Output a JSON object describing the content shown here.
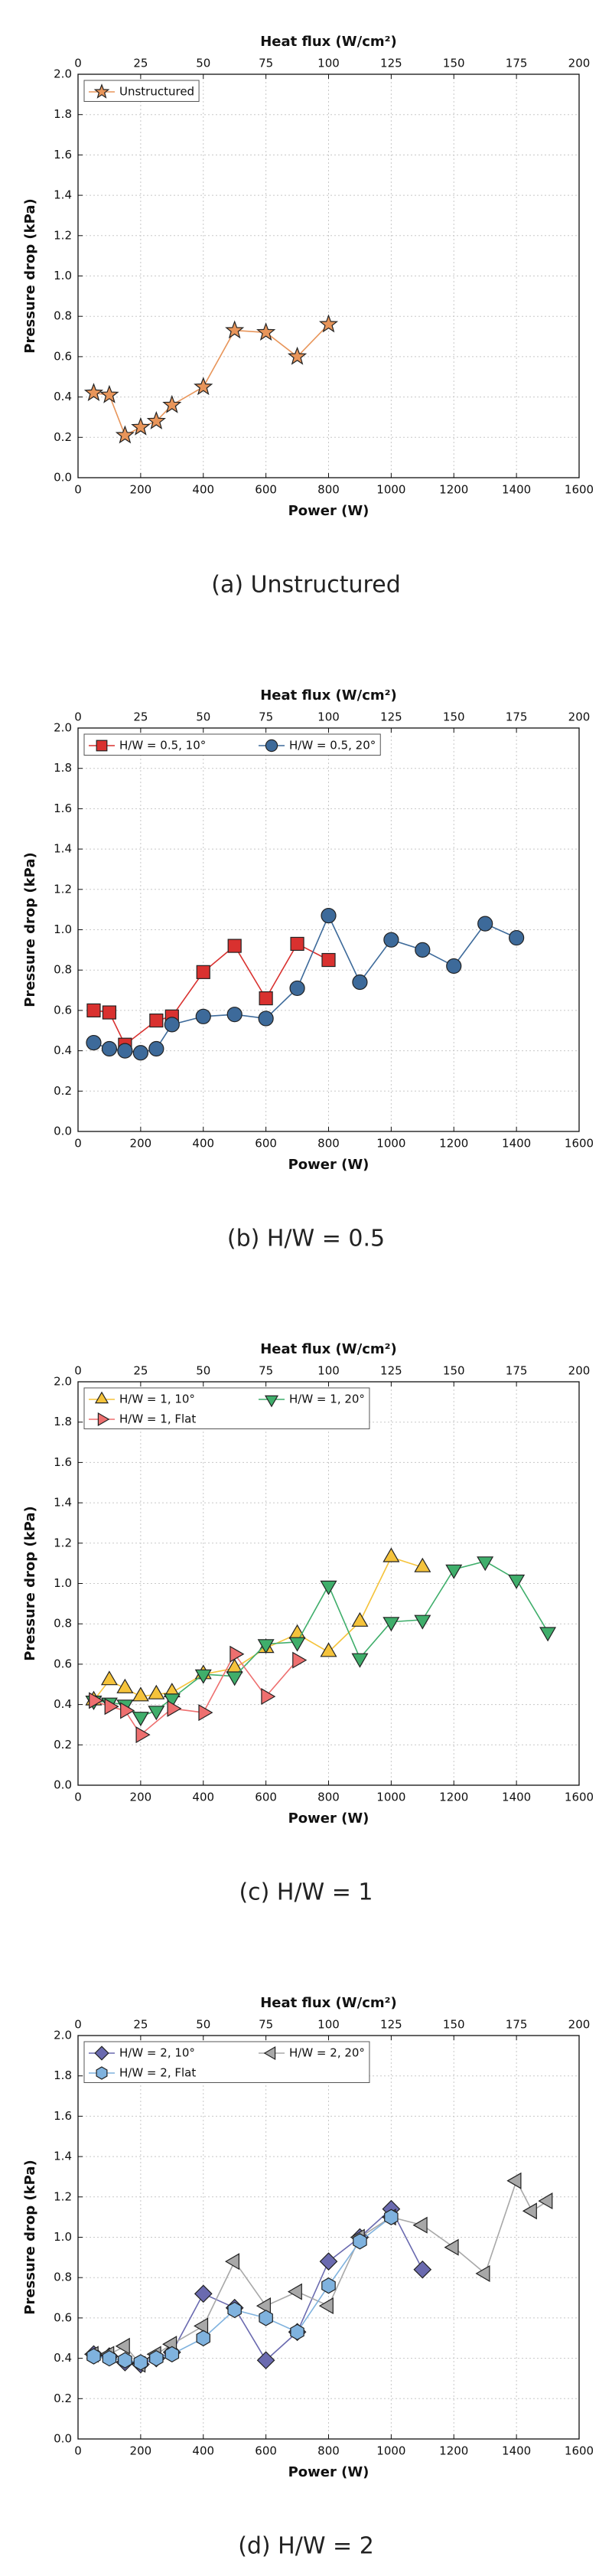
{
  "chart_data": [
    {
      "type": "line",
      "caption": "(a) Unstructured",
      "xlabel": "Power (W)",
      "ylabel": "Pressure drop (kPa)",
      "x2label": "Heat flux (W/cm²)",
      "xlim": [
        0,
        1600
      ],
      "xticks": [
        0,
        200,
        400,
        600,
        800,
        1000,
        1200,
        1400,
        1600
      ],
      "x2lim": [
        0,
        200
      ],
      "x2ticks": [
        0,
        25,
        50,
        75,
        100,
        125,
        150,
        175,
        200
      ],
      "ylim": [
        0,
        2
      ],
      "yticks": [
        {
          "value": 0,
          "label": "0.0"
        },
        0.2,
        0.4,
        0.6,
        0.8,
        {
          "value": 1,
          "label": "1.0"
        },
        1.2,
        1.4,
        1.6,
        1.8,
        {
          "value": 2,
          "label": "2.0"
        }
      ],
      "grid": true,
      "legend": "upper left",
      "series": [
        {
          "name": "Unstructured",
          "color": "#e8955a",
          "marker": "star",
          "x": [
            50,
            100,
            150,
            200,
            250,
            300,
            400,
            500,
            600,
            700,
            800
          ],
          "values": [
            0.42,
            0.41,
            0.21,
            0.25,
            0.28,
            0.36,
            0.45,
            0.73,
            0.72,
            0.6,
            0.76
          ]
        }
      ]
    },
    {
      "type": "line",
      "caption": "(b) H/W = 0.5",
      "xlabel": "Power (W)",
      "ylabel": "Pressure drop (kPa)",
      "x2label": "Heat flux (W/cm²)",
      "xlim": [
        0,
        1600
      ],
      "xticks": [
        0,
        200,
        400,
        600,
        800,
        1000,
        1200,
        1400,
        1600
      ],
      "x2lim": [
        0,
        200
      ],
      "x2ticks": [
        0,
        25,
        50,
        75,
        100,
        125,
        150,
        175,
        200
      ],
      "ylim": [
        0,
        2
      ],
      "yticks": [
        {
          "value": 0,
          "label": "0.0"
        },
        0.2,
        0.4,
        0.6,
        0.8,
        {
          "value": 1,
          "label": "1.0"
        },
        1.2,
        1.4,
        1.6,
        1.8,
        {
          "value": 2,
          "label": "2.0"
        }
      ],
      "grid": true,
      "legend": "upper left",
      "series": [
        {
          "name": "H/W = 0.5, 10°",
          "color": "#d9312f",
          "marker": "square",
          "x": [
            50,
            100,
            150,
            250,
            300,
            400,
            500,
            600,
            700,
            800
          ],
          "values": [
            0.6,
            0.59,
            0.43,
            0.55,
            0.57,
            0.79,
            0.92,
            0.66,
            0.93,
            0.85
          ]
        },
        {
          "name": "H/W = 0.5, 20°",
          "color": "#3d6a9a",
          "marker": "circle",
          "x": [
            50,
            100,
            150,
            200,
            250,
            300,
            400,
            500,
            600,
            700,
            800,
            900,
            1000,
            1100,
            1200,
            1300,
            1400
          ],
          "values": [
            0.44,
            0.41,
            0.4,
            0.39,
            0.41,
            0.53,
            0.57,
            0.58,
            0.56,
            0.71,
            1.07,
            0.74,
            0.95,
            0.9,
            0.82,
            1.03,
            0.96
          ]
        }
      ]
    },
    {
      "type": "line",
      "caption": "(c) H/W = 1",
      "xlabel": "Power (W)",
      "ylabel": "Pressure drop (kPa)",
      "x2label": "Heat flux (W/cm²)",
      "xlim": [
        0,
        1600
      ],
      "xticks": [
        0,
        200,
        400,
        600,
        800,
        1000,
        1200,
        1400,
        1600
      ],
      "x2lim": [
        0,
        200
      ],
      "x2ticks": [
        0,
        25,
        50,
        75,
        100,
        125,
        150,
        175,
        200
      ],
      "ylim": [
        0,
        2
      ],
      "yticks": [
        {
          "value": 0,
          "label": "0.0"
        },
        0.2,
        0.4,
        0.6,
        0.8,
        {
          "value": 1,
          "label": "1.0"
        },
        1.2,
        1.4,
        1.6,
        1.8,
        {
          "value": 2,
          "label": "2.0"
        }
      ],
      "grid": true,
      "legend": "upper left",
      "series": [
        {
          "name": "H/W = 1, 10°",
          "color": "#f5c33b",
          "marker": "triangle-up",
          "x": [
            50,
            100,
            150,
            200,
            250,
            300,
            400,
            500,
            600,
            700,
            800,
            900,
            1000,
            1100
          ],
          "values": [
            0.42,
            0.52,
            0.48,
            0.44,
            0.45,
            0.46,
            0.55,
            0.58,
            0.68,
            0.75,
            0.66,
            0.81,
            1.13,
            1.08
          ]
        },
        {
          "name": "H/W = 1, 20°",
          "color": "#3fae6b",
          "marker": "triangle-down",
          "x": [
            50,
            100,
            150,
            200,
            250,
            300,
            400,
            500,
            600,
            700,
            800,
            900,
            1000,
            1100,
            1200,
            1300,
            1400,
            1500
          ],
          "values": [
            0.42,
            0.41,
            0.4,
            0.34,
            0.37,
            0.43,
            0.55,
            0.54,
            0.7,
            0.71,
            0.99,
            0.63,
            0.81,
            0.82,
            1.07,
            1.11,
            1.02,
            0.76
          ]
        },
        {
          "name": "H/W = 1, Flat",
          "color": "#ee6f6f",
          "marker": "triangle-right",
          "x": [
            50,
            100,
            150,
            200,
            300,
            400,
            500,
            600,
            700
          ],
          "values": [
            0.42,
            0.39,
            0.37,
            0.25,
            0.38,
            0.36,
            0.65,
            0.44,
            0.62
          ]
        }
      ]
    },
    {
      "type": "line",
      "caption": "(d) H/W = 2",
      "xlabel": "Power (W)",
      "ylabel": "Pressure drop (kPa)",
      "x2label": "Heat flux (W/cm²)",
      "xlim": [
        0,
        1600
      ],
      "xticks": [
        0,
        200,
        400,
        600,
        800,
        1000,
        1200,
        1400,
        1600
      ],
      "x2lim": [
        0,
        200
      ],
      "x2ticks": [
        0,
        25,
        50,
        75,
        100,
        125,
        150,
        175,
        200
      ],
      "ylim": [
        0,
        2
      ],
      "yticks": [
        {
          "value": 0,
          "label": "0.0"
        },
        0.2,
        0.4,
        0.6,
        0.8,
        {
          "value": 1,
          "label": "1.0"
        },
        1.2,
        1.4,
        1.6,
        1.8,
        {
          "value": 2,
          "label": "2.0"
        }
      ],
      "grid": true,
      "legend": "upper left",
      "series": [
        {
          "name": "H/W = 2, 10°",
          "color": "#6a6aaf",
          "marker": "diamond",
          "x": [
            50,
            100,
            150,
            200,
            250,
            300,
            400,
            500,
            600,
            700,
            800,
            900,
            1000,
            1100
          ],
          "values": [
            0.42,
            0.41,
            0.38,
            0.37,
            0.4,
            0.43,
            0.72,
            0.65,
            0.39,
            0.53,
            0.88,
            1.0,
            1.14,
            0.84
          ]
        },
        {
          "name": "H/W = 2, 20°",
          "color": "#a8a8a8",
          "marker": "triangle-left",
          "x": [
            50,
            100,
            150,
            200,
            250,
            300,
            400,
            500,
            600,
            700,
            800,
            900,
            1000,
            1100,
            1200,
            1300,
            1400,
            1450,
            1500
          ],
          "values": [
            0.42,
            0.42,
            0.46,
            0.37,
            0.42,
            0.47,
            0.56,
            0.88,
            0.66,
            0.73,
            0.66,
            1.0,
            1.1,
            1.06,
            0.95,
            0.82,
            1.28,
            1.13,
            1.18
          ]
        },
        {
          "name": "H/W = 2, Flat",
          "color": "#7fb2de",
          "marker": "hexagon",
          "x": [
            50,
            100,
            150,
            200,
            250,
            300,
            400,
            500,
            600,
            700,
            800,
            900,
            1000
          ],
          "values": [
            0.41,
            0.4,
            0.39,
            0.38,
            0.4,
            0.42,
            0.5,
            0.64,
            0.6,
            0.53,
            0.76,
            0.98,
            1.1
          ]
        }
      ]
    }
  ]
}
